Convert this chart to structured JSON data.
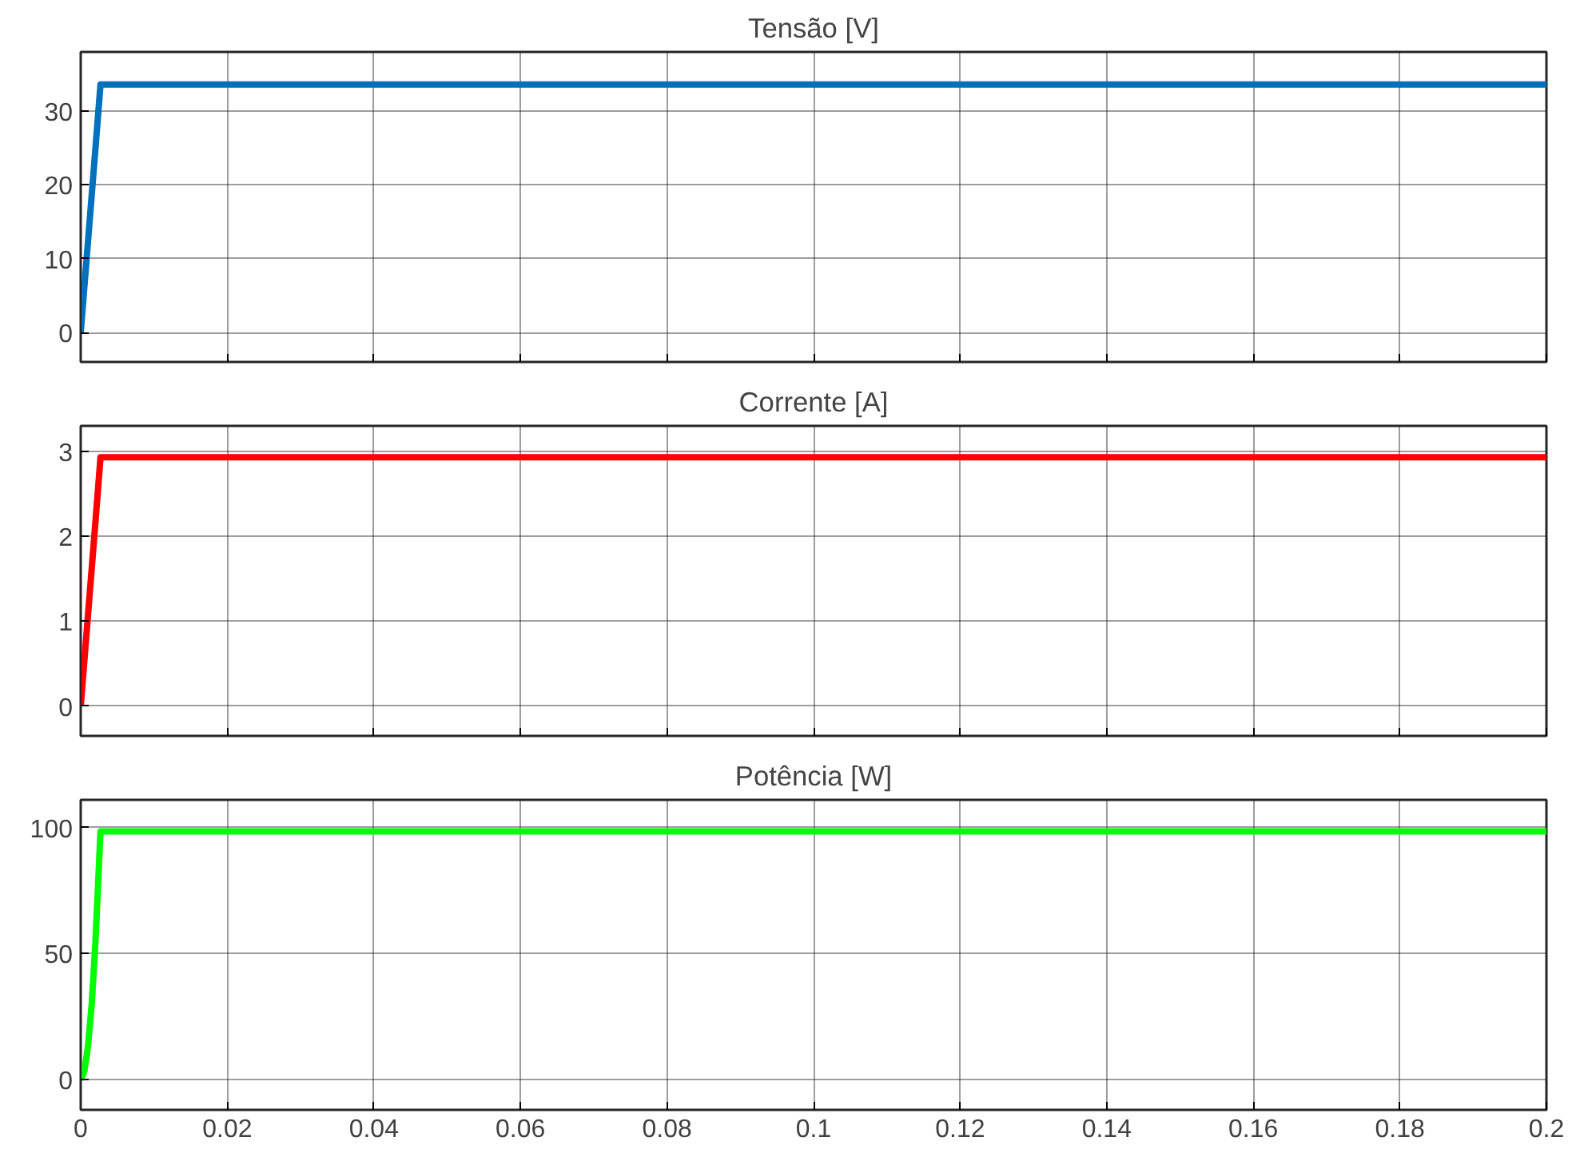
{
  "chart_data": [
    {
      "type": "line",
      "title": "Tensão [V]",
      "x": [
        0,
        0.0005,
        0.001,
        0.0015,
        0.002,
        0.0027,
        0.05,
        0.1,
        0.15,
        0.2
      ],
      "series": [
        {
          "color": "#0072bd",
          "values": [
            0,
            6.2,
            12.4,
            18.6,
            24.8,
            33.6,
            33.6,
            33.6,
            33.6,
            33.6
          ]
        }
      ],
      "xlim": [
        0,
        0.2
      ],
      "xticks": [
        0,
        0.02,
        0.04,
        0.06,
        0.08,
        0.1,
        0.12,
        0.14,
        0.16,
        0.18,
        0.2
      ],
      "ylim": [
        -4,
        38
      ],
      "yticks": [
        0,
        10,
        20,
        30
      ],
      "grid": true,
      "tick_labels": "y"
    },
    {
      "type": "line",
      "title": "Corrente [A]",
      "x": [
        0,
        0.0005,
        0.001,
        0.0015,
        0.002,
        0.0027,
        0.05,
        0.1,
        0.15,
        0.2
      ],
      "series": [
        {
          "color": "#ff0000",
          "values": [
            0,
            0.54,
            1.08,
            1.62,
            2.16,
            2.93,
            2.93,
            2.93,
            2.93,
            2.93
          ]
        }
      ],
      "xlim": [
        0,
        0.2
      ],
      "xticks": [
        0,
        0.02,
        0.04,
        0.06,
        0.08,
        0.1,
        0.12,
        0.14,
        0.16,
        0.18,
        0.2
      ],
      "ylim": [
        -0.35,
        3.3
      ],
      "yticks": [
        0,
        1,
        2,
        3
      ],
      "grid": true,
      "tick_labels": "y"
    },
    {
      "type": "line",
      "title": "Potência [W]",
      "x": [
        0,
        0.0005,
        0.001,
        0.0015,
        0.002,
        0.0027,
        0.05,
        0.1,
        0.15,
        0.2
      ],
      "series": [
        {
          "color": "#00ff00",
          "values": [
            0,
            3.4,
            13.4,
            30,
            54,
            98.5,
            98.5,
            98.5,
            98.5,
            98.5
          ]
        }
      ],
      "xlim": [
        0,
        0.2
      ],
      "xticks": [
        0,
        0.02,
        0.04,
        0.06,
        0.08,
        0.1,
        0.12,
        0.14,
        0.16,
        0.18,
        0.2
      ],
      "ylim": [
        -12,
        111
      ],
      "yticks": [
        0,
        50,
        100
      ],
      "grid": true
    }
  ]
}
